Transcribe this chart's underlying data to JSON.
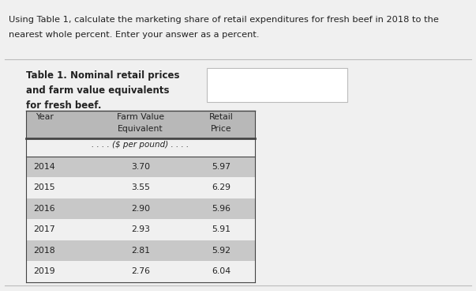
{
  "question_text_line1": "Using Table 1, calculate the marketing share of retail expenditures for fresh beef in 2018 to the",
  "question_text_line2": "nearest whole percent. Enter your answer as a percent.",
  "table_title_line1": "Table 1. Nominal retail prices",
  "table_title_line2": "and farm value equivalents",
  "table_title_line3": "for fresh beef.",
  "unit_row": ". . . . ($ per pound) . . . .",
  "years": [
    "2014",
    "2015",
    "2016",
    "2017",
    "2018",
    "2019"
  ],
  "farm_values": [
    "3.70",
    "3.55",
    "2.90",
    "2.93",
    "2.81",
    "2.76"
  ],
  "retail_prices": [
    "5.97",
    "6.29",
    "5.96",
    "5.91",
    "5.92",
    "6.04"
  ],
  "shaded_rows": [
    0,
    2,
    4
  ],
  "bg_color": "#f0f0f0",
  "header_bg": "#b8b8b8",
  "row_shade": "#c8c8c8",
  "row_unshaded": "#f0f0f0",
  "answer_box_color": "#ffffff",
  "answer_box_border": "#bbbbbb",
  "text_color": "#222222",
  "separator_color": "#bbbbbb",
  "table_border_color": "#444444"
}
